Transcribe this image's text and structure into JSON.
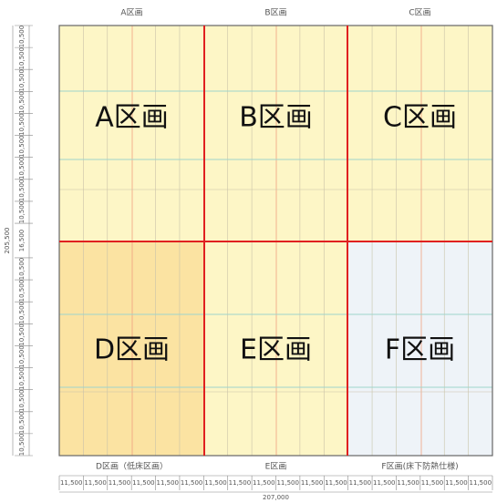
{
  "top_labels": [
    "A区画",
    "B区画",
    "C区画"
  ],
  "zones": [
    "A区画",
    "B区画",
    "C区画",
    "D区画",
    "E区画",
    "F区画"
  ],
  "bottom_labels": [
    "D区画（低床区画）",
    "E区画",
    "F区画(床下防熱仕様)"
  ],
  "width_dims": [
    "11,500",
    "11,500",
    "11,500",
    "11,500",
    "11,500",
    "11,500",
    "11,500",
    "11,500",
    "11,500",
    "11,500",
    "11,500",
    "11,500",
    "11,500",
    "11,500",
    "11,500",
    "11,500",
    "11,500",
    "11,500"
  ],
  "width_total": "207,000",
  "height_dims": [
    "10,500",
    "10,500",
    "10,500",
    "10,500",
    "10,500",
    "10,500",
    "10,500",
    "10,500",
    "10,500",
    "16,500",
    "10,500",
    "10,500",
    "10,500",
    "10,500",
    "10,500",
    "10,500",
    "10,500",
    "10,500",
    "10,500"
  ],
  "height_total": "205,500"
}
